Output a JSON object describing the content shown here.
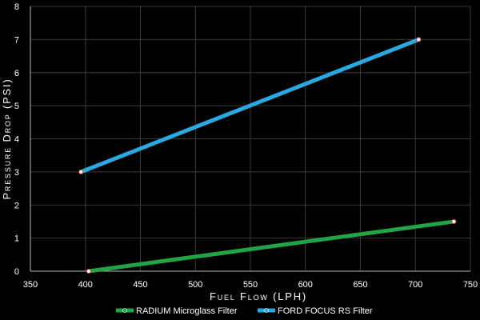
{
  "chart_data": {
    "type": "line",
    "title": "",
    "xlabel": "Fuel Flow (LPH)",
    "ylabel": "Pressure Drop (PSI)",
    "xlim": [
      350,
      750
    ],
    "ylim": [
      0,
      8
    ],
    "xticks": [
      350,
      400,
      450,
      500,
      550,
      600,
      650,
      700,
      750
    ],
    "yticks": [
      0,
      1,
      2,
      3,
      4,
      5,
      6,
      7,
      8
    ],
    "grid": true,
    "background": "#000000",
    "grid_color": "#3a3a3a",
    "legend_position": "bottom",
    "series": [
      {
        "name": "RADIUM Microglass Filter",
        "color": "#22a346",
        "marker_color": "#e0443a",
        "points": [
          {
            "x": 403,
            "y": 0
          },
          {
            "x": 735,
            "y": 1.5
          }
        ]
      },
      {
        "name": "FORD FOCUS RS Filter",
        "color": "#2aa8e0",
        "marker_color": "#e0443a",
        "points": [
          {
            "x": 396,
            "y": 3
          },
          {
            "x": 703,
            "y": 7
          }
        ]
      }
    ]
  }
}
